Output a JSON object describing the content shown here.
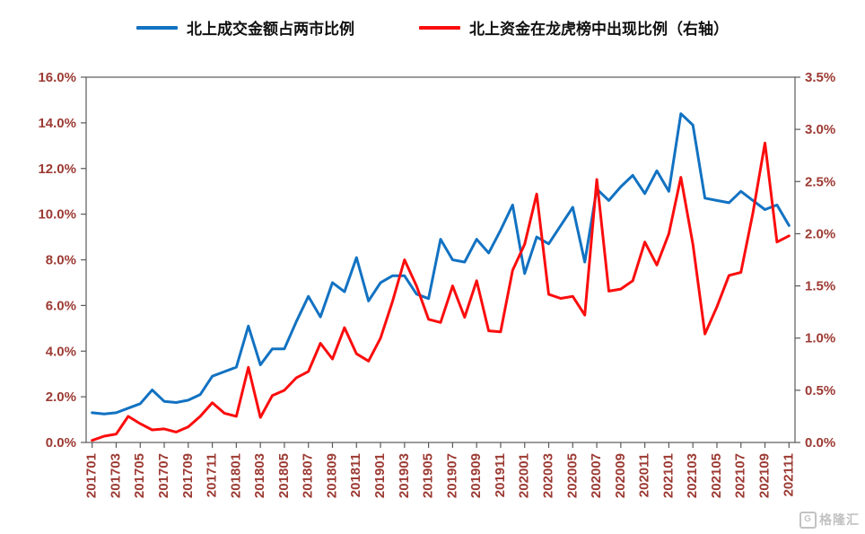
{
  "watermark": {
    "text": "格隆汇",
    "logo_letter": "G"
  },
  "style": {
    "axis_label_color": "#9c3a33",
    "axis_line_color": "#595959",
    "blue": "#1272c2",
    "red": "#fb0d0d"
  },
  "chart_data": {
    "type": "line",
    "title": "",
    "legend_position": "top",
    "grid": false,
    "x_tick_every": 2,
    "x": [
      "201701",
      "201702",
      "201703",
      "201704",
      "201705",
      "201706",
      "201707",
      "201708",
      "201709",
      "201710",
      "201711",
      "201712",
      "201801",
      "201802",
      "201803",
      "201804",
      "201805",
      "201806",
      "201807",
      "201808",
      "201809",
      "201810",
      "201811",
      "201812",
      "201901",
      "201902",
      "201903",
      "201904",
      "201905",
      "201906",
      "201907",
      "201908",
      "201909",
      "201910",
      "201911",
      "201912",
      "202001",
      "202002",
      "202003",
      "202004",
      "202005",
      "202006",
      "202007",
      "202008",
      "202009",
      "202010",
      "202011",
      "202012",
      "202101",
      "202102",
      "202103",
      "202104",
      "202105",
      "202106",
      "202107",
      "202108",
      "202109",
      "202110",
      "202111"
    ],
    "left_axis": {
      "min": 0,
      "max": 16,
      "step": 2,
      "suffix": "%",
      "decimals": 1
    },
    "right_axis": {
      "min": 0,
      "max": 3.5,
      "step": 0.5,
      "suffix": "%",
      "decimals": 1
    },
    "series": [
      {
        "name": "北上成交金额占两市比例",
        "axis": "left",
        "color": "#1272c2",
        "values": [
          1.3,
          1.25,
          1.3,
          1.5,
          1.7,
          2.3,
          1.8,
          1.75,
          1.85,
          2.1,
          2.9,
          3.1,
          3.3,
          5.1,
          3.4,
          4.1,
          4.1,
          5.3,
          6.4,
          5.5,
          7.0,
          6.6,
          8.1,
          6.2,
          7.0,
          7.3,
          7.3,
          6.5,
          6.3,
          8.9,
          8.0,
          7.9,
          8.9,
          8.3,
          9.3,
          10.4,
          7.4,
          9.0,
          8.7,
          9.5,
          10.3,
          7.9,
          11.1,
          10.6,
          11.2,
          11.7,
          10.9,
          11.9,
          11.0,
          14.4,
          13.9,
          10.7,
          10.6,
          10.5,
          11.0,
          10.6,
          10.2,
          10.4,
          9.5
        ]
      },
      {
        "name": "北上资金在龙虎榜中出现比例（右轴）",
        "axis": "right",
        "color": "#fb0d0d",
        "values": [
          0.02,
          0.06,
          0.08,
          0.25,
          0.18,
          0.12,
          0.13,
          0.1,
          0.15,
          0.25,
          0.38,
          0.28,
          0.25,
          0.72,
          0.24,
          0.45,
          0.5,
          0.62,
          0.68,
          0.95,
          0.8,
          1.1,
          0.85,
          0.78,
          1.0,
          1.35,
          1.75,
          1.5,
          1.18,
          1.15,
          1.5,
          1.2,
          1.55,
          1.07,
          1.06,
          1.65,
          1.9,
          2.38,
          1.42,
          1.38,
          1.4,
          1.22,
          2.52,
          1.45,
          1.47,
          1.55,
          1.92,
          1.7,
          2.0,
          2.54,
          1.9,
          1.04,
          1.3,
          1.6,
          1.63,
          2.2,
          2.87,
          1.92,
          1.98
        ]
      }
    ]
  }
}
